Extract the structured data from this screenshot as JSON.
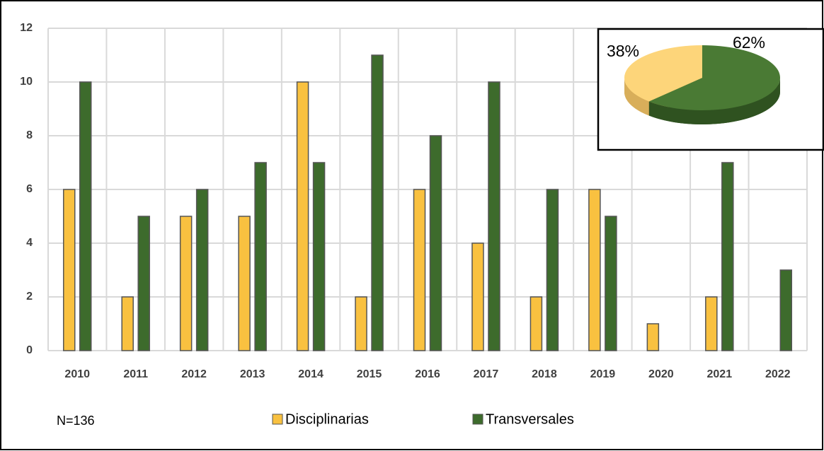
{
  "chart_data": [
    {
      "type": "bar",
      "categories": [
        "2010",
        "2011",
        "2012",
        "2013",
        "2014",
        "2015",
        "2016",
        "2017",
        "2018",
        "2019",
        "2020",
        "2021",
        "2022"
      ],
      "series": [
        {
          "name": "Disciplinarias",
          "color": "#f9c140",
          "values": [
            6,
            2,
            5,
            5,
            10,
            2,
            6,
            4,
            2,
            6,
            1,
            2,
            0
          ]
        },
        {
          "name": "Transversales",
          "color": "#3d6b2c",
          "values": [
            10,
            5,
            6,
            7,
            7,
            11,
            8,
            10,
            6,
            5,
            0,
            7,
            3
          ]
        }
      ],
      "ylim": [
        0,
        12
      ],
      "yticks": [
        0,
        2,
        4,
        6,
        8,
        10,
        12
      ],
      "grid": true,
      "annotations": [
        "N=136"
      ]
    },
    {
      "type": "pie",
      "values": [
        38,
        62
      ],
      "value_labels": [
        "38%",
        "62%"
      ],
      "colors": [
        "#fdd57a",
        "#4a7a34"
      ]
    }
  ]
}
